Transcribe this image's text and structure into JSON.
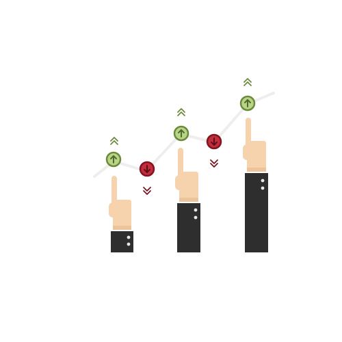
{
  "colors": {
    "background": "#ffffff",
    "trend_line": "#eeeeee",
    "skin": "#f6d3ad",
    "skin_shade": "#ecc39a",
    "sleeve": "#2e2e2e",
    "button": "#e8e8e8",
    "up_fill": "#b9d487",
    "up_ring": "#6b8a3c",
    "up_arrow": "#4f6b2a",
    "down_fill": "#c22d3c",
    "down_ring": "#7f1522",
    "down_arrow": "#5d0f18"
  },
  "icons": {
    "up": "up-arrow-icon",
    "down": "down-arrow-icon",
    "up_chevron": "double-chevron-up-icon",
    "down_chevron": "double-chevron-down-icon",
    "hand": "pointing-hand-icon"
  }
}
